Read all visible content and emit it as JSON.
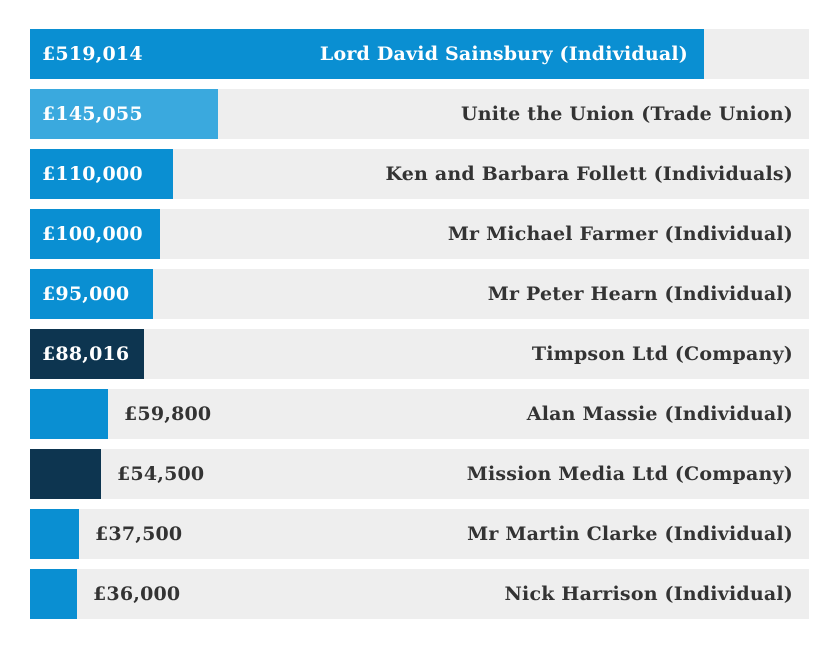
{
  "chart_data": {
    "type": "bar",
    "orientation": "horizontal",
    "categories": [
      "Lord David Sainsbury (Individual)",
      "Unite the Union (Trade Union)",
      "Ken and Barbara Follett (Individuals)",
      "Mr Michael Farmer (Individual)",
      "Mr Peter Hearn (Individual)",
      "Timpson Ltd (Company)",
      "Alan Massie (Individual)",
      "Mission Media Ltd (Company)",
      "Mr Martin Clarke (Individual)",
      "Nick Harrison (Individual)"
    ],
    "values": [
      519014,
      145055,
      110000,
      100000,
      95000,
      88016,
      59800,
      54500,
      37500,
      36000
    ],
    "value_labels": [
      "£519,014",
      "£145,055",
      "£110,000",
      "£100,000",
      "£95,000",
      "£88,016",
      "£59,800",
      "£54,500",
      "£37,500",
      "£36,000"
    ],
    "bar_colors": [
      "#0a8fd2",
      "#3aa9de",
      "#0a8fd2",
      "#0a8fd2",
      "#0a8fd2",
      "#0d3550",
      "#0a8fd2",
      "#0d3550",
      "#0a8fd2",
      "#0a8fd2"
    ],
    "xlim": [
      0,
      600000
    ],
    "grid": false,
    "title": "",
    "xlabel": "",
    "ylabel": ""
  },
  "colors": {
    "track": "#eeeeee",
    "text_dark": "#333333",
    "text_light": "#ffffff"
  }
}
